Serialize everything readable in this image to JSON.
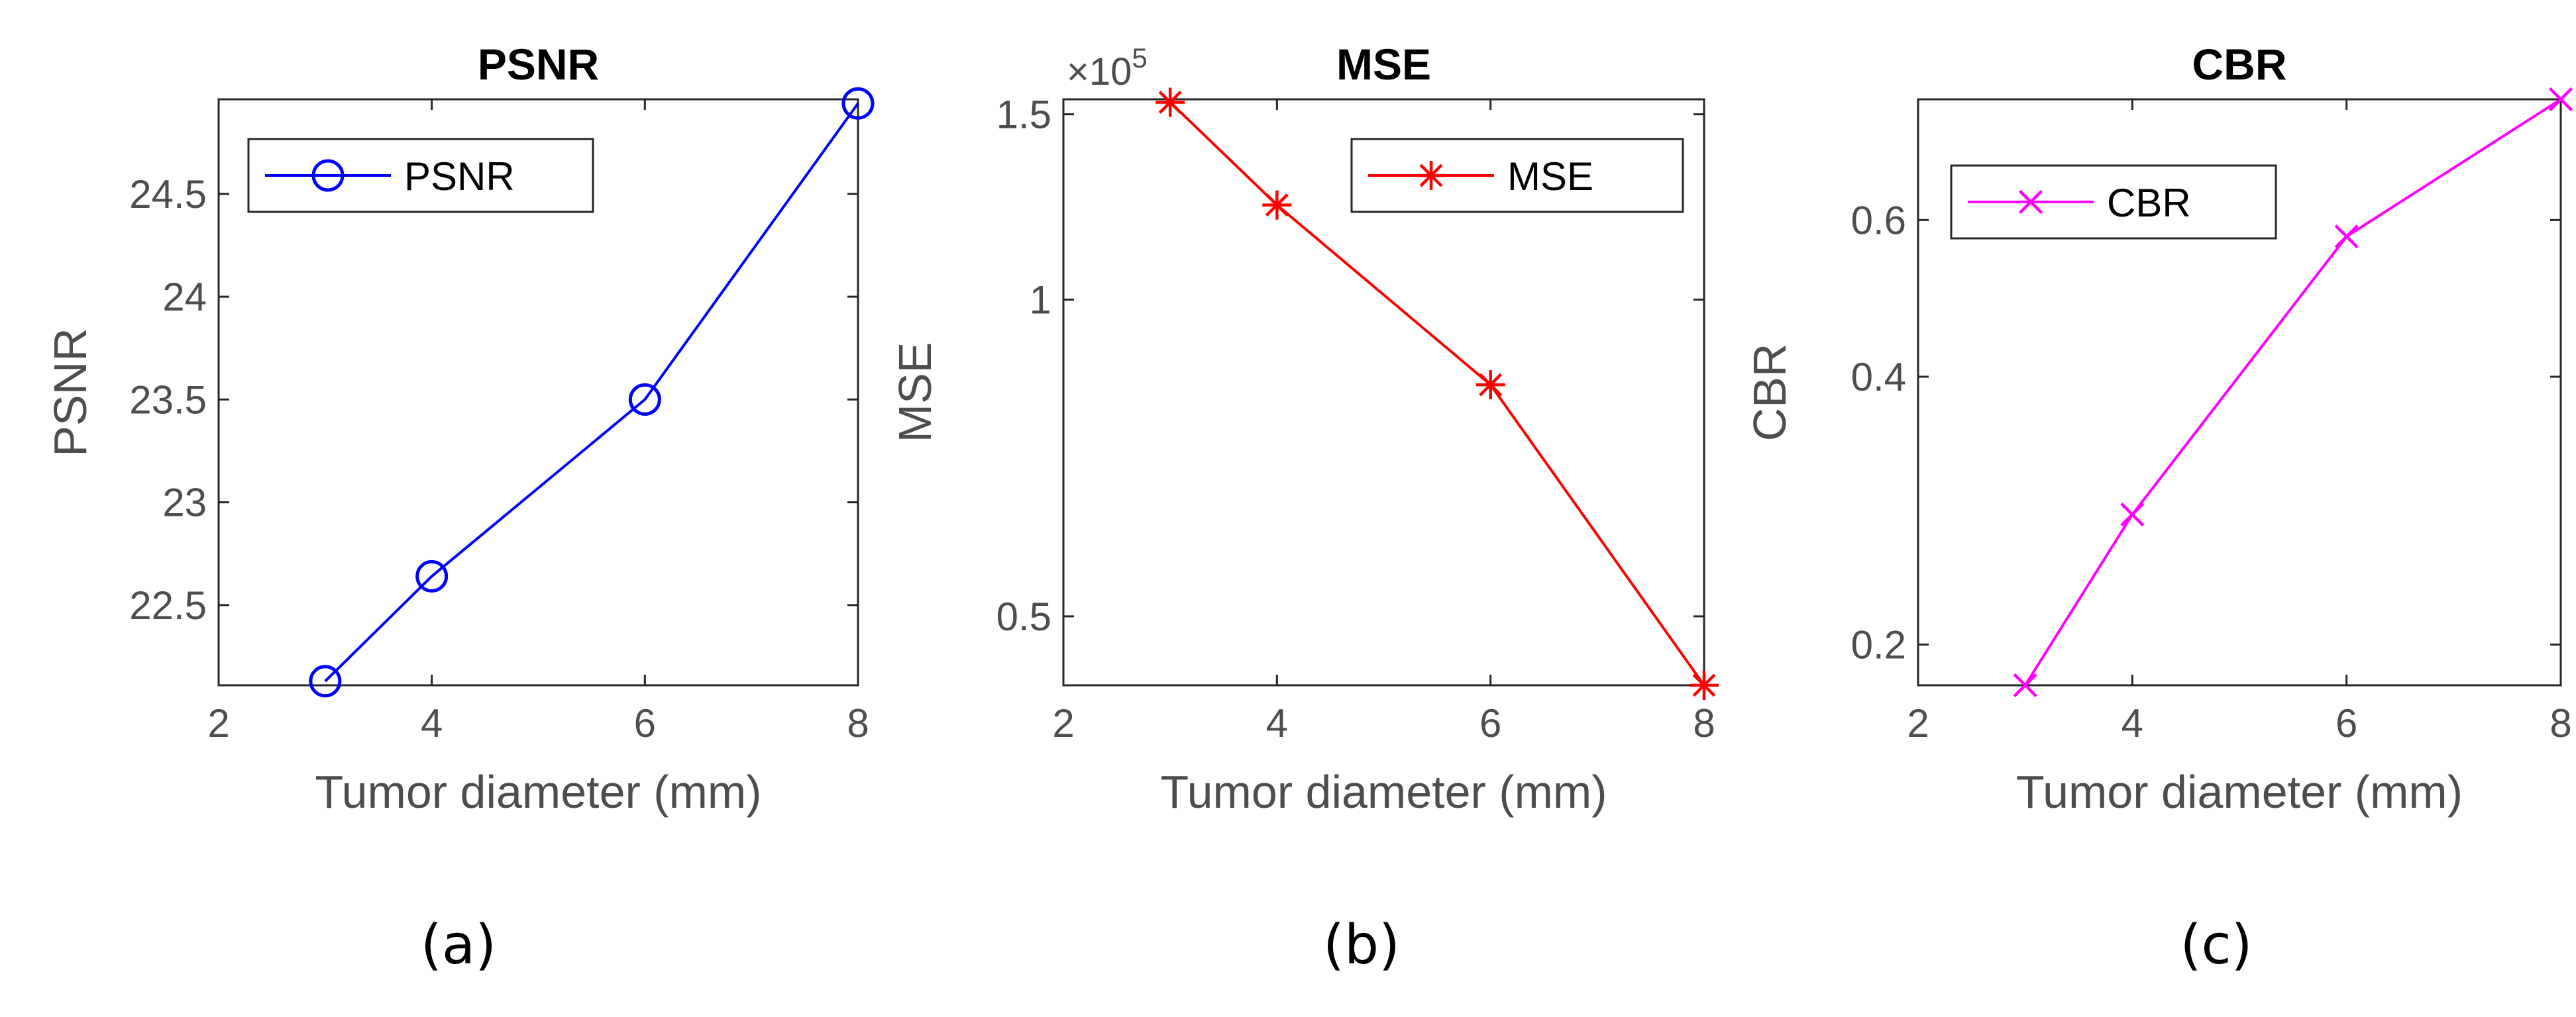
{
  "chart_data": [
    {
      "type": "line",
      "title": "PSNR",
      "xlabel": "Tumor diameter (mm)",
      "ylabel": "PSNR",
      "caption": "(a)",
      "xlim": [
        2,
        8
      ],
      "ylim": [
        22.11,
        24.96
      ],
      "xticks": [
        2,
        4,
        6,
        8
      ],
      "xtick_labels": [
        "2",
        "4",
        "6",
        "8"
      ],
      "yticks": [
        22.5,
        23,
        23.5,
        24,
        24.5
      ],
      "ytick_labels": [
        "22.5",
        "23",
        "23.5",
        "24",
        "24.5"
      ],
      "yscale": "linear",
      "exponent_label": "",
      "grid": false,
      "legend_position": "top-left",
      "series": [
        {
          "name": "PSNR",
          "color": "#0000ff",
          "marker": "circle",
          "x": [
            3,
            4,
            6,
            8
          ],
          "y": [
            22.13,
            22.64,
            23.5,
            24.94
          ]
        }
      ]
    },
    {
      "type": "line",
      "title": "MSE",
      "xlabel": "Tumor diameter (mm)",
      "ylabel": "MSE",
      "caption": "(b)",
      "xlim": [
        2,
        8
      ],
      "ylim": [
        0.43,
        1.55
      ],
      "xticks": [
        2,
        4,
        6,
        8
      ],
      "xtick_labels": [
        "2",
        "4",
        "6",
        "8"
      ],
      "yticks": [
        0.5,
        1,
        1.5
      ],
      "ytick_labels": [
        "0.5",
        "1",
        "1.5"
      ],
      "yscale": "log",
      "exponent_label": "×10",
      "exponent_power": "5",
      "grid": false,
      "legend_position": "top-right",
      "series": [
        {
          "name": "MSE",
          "color": "#ff0000",
          "marker": "asterisk",
          "x": [
            3,
            4,
            6,
            8
          ],
          "y": [
            1.54,
            1.23,
            0.83,
            0.43
          ]
        }
      ]
    },
    {
      "type": "line",
      "title": "CBR",
      "xlabel": "Tumor diameter (mm)",
      "ylabel": "CBR",
      "caption": "(c)",
      "xlim": [
        2,
        8
      ],
      "ylim": [
        0.18,
        0.82
      ],
      "xticks": [
        2,
        4,
        6,
        8
      ],
      "xtick_labels": [
        "2",
        "4",
        "6",
        "8"
      ],
      "yticks": [
        0.2,
        0.4,
        0.6
      ],
      "ytick_labels": [
        "0.2",
        "0.4",
        "0.6"
      ],
      "yscale": "log",
      "exponent_label": "",
      "grid": false,
      "legend_position": "top-left",
      "series": [
        {
          "name": "CBR",
          "color": "#ff00ff",
          "marker": "x",
          "x": [
            3,
            4,
            6,
            8
          ],
          "y": [
            0.18,
            0.28,
            0.575,
            0.82
          ]
        }
      ]
    }
  ]
}
